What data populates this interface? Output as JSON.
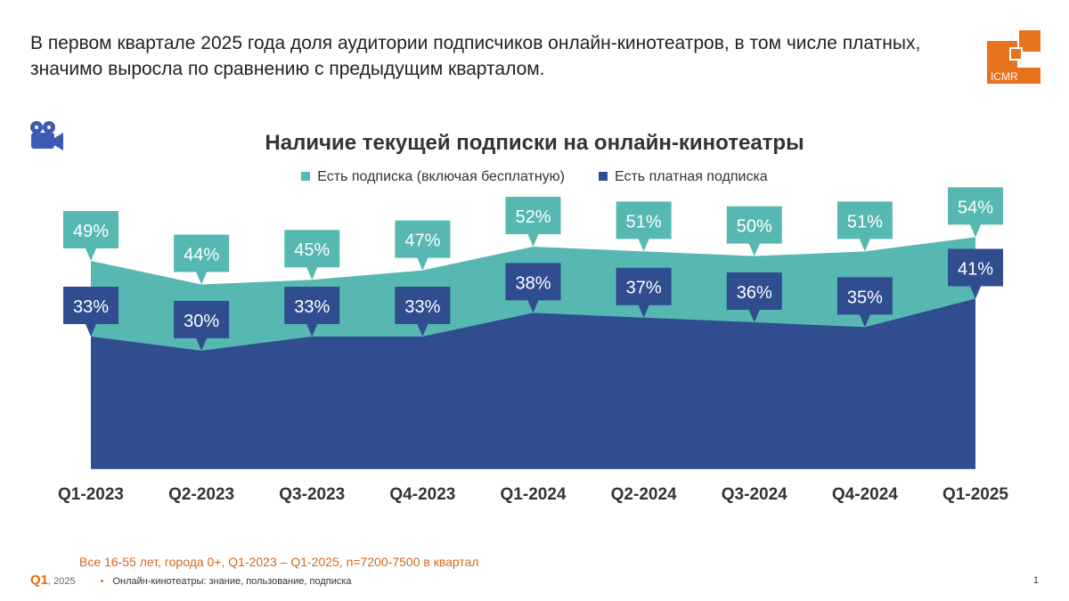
{
  "headline": "В первом квартале 2025 года доля аудитории подписчиков онлайн-кинотеатров, в том числе платных, значимо выросла по сравнению с предыдущим кварталом.",
  "logo": {
    "text": "ICMR",
    "color": "#e8731f"
  },
  "icon": "movie-camera-icon",
  "chart_data": {
    "type": "area",
    "title": "Наличие текущей подписки на онлайн-кинотеатры",
    "categories": [
      "Q1-2023",
      "Q2-2023",
      "Q3-2023",
      "Q4-2023",
      "Q1-2024",
      "Q2-2024",
      "Q3-2024",
      "Q4-2024",
      "Q1-2025"
    ],
    "series": [
      {
        "name": "Есть подписка (включая бесплатную)",
        "color": "#56b8b0",
        "values": [
          49,
          44,
          45,
          47,
          52,
          51,
          50,
          51,
          54
        ]
      },
      {
        "name": "Есть платная подписка",
        "color": "#2f4d8f",
        "values": [
          33,
          30,
          33,
          33,
          38,
          37,
          36,
          35,
          41
        ]
      }
    ],
    "ylim": [
      5,
      60
    ],
    "grid": false,
    "legend": "top",
    "value_suffix": "%"
  },
  "note": "Все 16-55 лет, города 0+, Q1-2023 – Q1-2025, n=7200-7500 в квартал",
  "footer": {
    "wave": "Q1",
    "year": ", 2025",
    "bullet": "•",
    "report": "Онлайн-кинотеатры: знание, пользование, подписка",
    "page": "1"
  }
}
